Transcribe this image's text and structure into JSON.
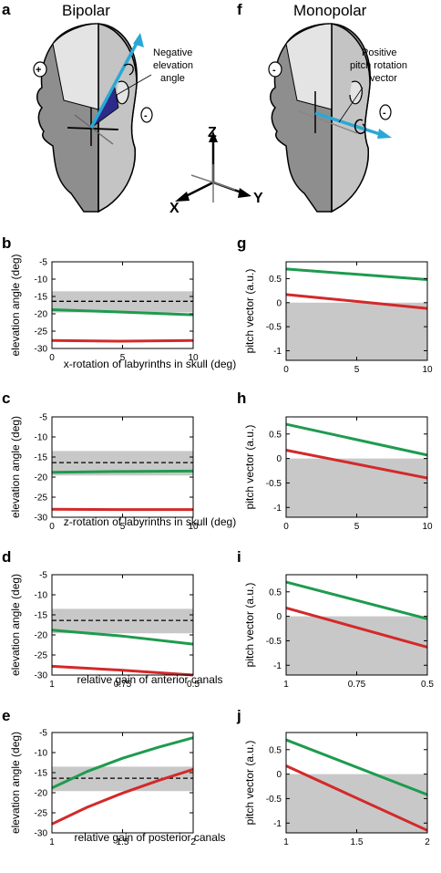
{
  "header": {
    "panel_a": {
      "letter": "a",
      "title": "Bipolar",
      "annotation_line1": "Negative",
      "annotation_line2": "elevation",
      "annotation_line3": "angle"
    },
    "panel_f": {
      "letter": "f",
      "title": "Monopolar",
      "annotation_line1": "Positive",
      "annotation_line2": "pitch rotation",
      "annotation_line3": "vector"
    },
    "axes": {
      "z": "Z",
      "x": "X",
      "y": "Y"
    }
  },
  "colors": {
    "green": "#1e9b4e",
    "red": "#d3292a",
    "shade": "#c8c8c8",
    "arrow": "#29a8d6",
    "head_light": "#e4e4e4",
    "head_mid": "#c4c4c4",
    "head_dark": "#8e8e8e"
  },
  "chart_data": [
    {
      "id": "b",
      "type": "line",
      "letter": "b",
      "ylabel": "elevation angle (deg)",
      "xlabel": "x-rotation of labyrinths in skull (deg)",
      "xlim": [
        0,
        10
      ],
      "ylim": [
        -30,
        -5
      ],
      "xticks": [
        "0",
        "5",
        "10"
      ],
      "yticks": [
        "-5",
        "-10",
        "-15",
        "-20",
        "-25",
        "-30"
      ],
      "shade": [
        -19.6,
        -13.5
      ],
      "dashed": -16.4,
      "series": [
        {
          "color": "green",
          "x": [
            0,
            5,
            10
          ],
          "y": [
            -18.8,
            -19.5,
            -20.3
          ]
        },
        {
          "color": "red",
          "x": [
            0,
            5,
            10
          ],
          "y": [
            -27.7,
            -27.9,
            -27.7
          ]
        }
      ]
    },
    {
      "id": "c",
      "type": "line",
      "letter": "c",
      "ylabel": "elevation angle (deg)",
      "xlabel": "z-rotation of labyrinths in skull (deg)",
      "xlim": [
        0,
        10
      ],
      "ylim": [
        -30,
        -5
      ],
      "xticks": [
        "0",
        "5",
        "10"
      ],
      "yticks": [
        "-5",
        "-10",
        "-15",
        "-20",
        "-25",
        "-30"
      ],
      "shade": [
        -19.6,
        -13.5
      ],
      "dashed": -16.4,
      "series": [
        {
          "color": "green",
          "x": [
            0,
            5,
            10
          ],
          "y": [
            -18.8,
            -18.6,
            -18.5
          ]
        },
        {
          "color": "red",
          "x": [
            0,
            5,
            10
          ],
          "y": [
            -28.0,
            -28.1,
            -28.1
          ]
        }
      ]
    },
    {
      "id": "d",
      "type": "line",
      "letter": "d",
      "ylabel": "elevation angle (deg)",
      "xlabel": "relative gain of anterior canals",
      "xlim": [
        1,
        0.5
      ],
      "ylim": [
        -30,
        -5
      ],
      "xticks": [
        "1",
        "0.75",
        "0.5"
      ],
      "yticks": [
        "-5",
        "-10",
        "-15",
        "-20",
        "-25",
        "-30"
      ],
      "shade": [
        -19.6,
        -13.5
      ],
      "dashed": -16.4,
      "series": [
        {
          "color": "green",
          "x": [
            1,
            0.75,
            0.5
          ],
          "y": [
            -18.8,
            -20.3,
            -22.3
          ]
        },
        {
          "color": "red",
          "x": [
            1,
            0.75,
            0.5
          ],
          "y": [
            -27.8,
            -28.8,
            -30.0
          ]
        }
      ]
    },
    {
      "id": "e",
      "type": "line",
      "letter": "e",
      "ylabel": "elevation angle (deg)",
      "xlabel": "relative gain of posterior canals",
      "xlim": [
        1,
        2
      ],
      "ylim": [
        -30,
        -5
      ],
      "xticks": [
        "1",
        "1.5",
        "2"
      ],
      "yticks": [
        "-5",
        "-10",
        "-15",
        "-20",
        "-25",
        "-30"
      ],
      "shade": [
        -19.6,
        -13.5
      ],
      "dashed": -16.4,
      "series": [
        {
          "color": "green",
          "x": [
            1,
            1.25,
            1.5,
            1.75,
            2
          ],
          "y": [
            -18.8,
            -14.7,
            -11.4,
            -8.7,
            -6.3
          ]
        },
        {
          "color": "red",
          "x": [
            1,
            1.25,
            1.5,
            1.75,
            2
          ],
          "y": [
            -27.8,
            -23.6,
            -20.1,
            -17.0,
            -14.2
          ]
        }
      ]
    },
    {
      "id": "g",
      "type": "line",
      "letter": "g",
      "ylabel": "pitch vector (a.u.)",
      "xlabel": "",
      "xlim": [
        0,
        10
      ],
      "ylim": [
        -1.2,
        0.85
      ],
      "xticks": [
        "0",
        "5",
        "10"
      ],
      "yticks": [
        "0.5",
        "0",
        "-0.5",
        "-1"
      ],
      "ytickvals": [
        0.5,
        0,
        -0.5,
        -1
      ],
      "shade": [
        -1.2,
        0
      ],
      "dashed": null,
      "series": [
        {
          "color": "green",
          "x": [
            0,
            10
          ],
          "y": [
            0.7,
            0.48
          ]
        },
        {
          "color": "red",
          "x": [
            0,
            10
          ],
          "y": [
            0.17,
            -0.12
          ]
        }
      ]
    },
    {
      "id": "h",
      "type": "line",
      "letter": "h",
      "ylabel": "pitch vector (a.u.)",
      "xlabel": "",
      "xlim": [
        0,
        10
      ],
      "ylim": [
        -1.2,
        0.85
      ],
      "xticks": [
        "0",
        "5",
        "10"
      ],
      "yticks": [
        "0.5",
        "0",
        "-0.5",
        "-1"
      ],
      "ytickvals": [
        0.5,
        0,
        -0.5,
        -1
      ],
      "shade": [
        -1.2,
        0
      ],
      "dashed": null,
      "series": [
        {
          "color": "green",
          "x": [
            0,
            10
          ],
          "y": [
            0.7,
            0.07
          ]
        },
        {
          "color": "red",
          "x": [
            0,
            10
          ],
          "y": [
            0.17,
            -0.4
          ]
        }
      ]
    },
    {
      "id": "i",
      "type": "line",
      "letter": "i",
      "ylabel": "pitch vector (a.u.)",
      "xlabel": "",
      "xlim": [
        1,
        0.5
      ],
      "ylim": [
        -1.2,
        0.85
      ],
      "xticks": [
        "1",
        "0.75",
        "0.5"
      ],
      "yticks": [
        "0.5",
        "0",
        "-0.5",
        "-1"
      ],
      "ytickvals": [
        0.5,
        0,
        -0.5,
        -1
      ],
      "shade": [
        -1.2,
        0
      ],
      "dashed": null,
      "series": [
        {
          "color": "green",
          "x": [
            1,
            0.5
          ],
          "y": [
            0.7,
            -0.05
          ]
        },
        {
          "color": "red",
          "x": [
            1,
            0.5
          ],
          "y": [
            0.17,
            -0.63
          ]
        }
      ]
    },
    {
      "id": "j",
      "type": "line",
      "letter": "j",
      "ylabel": "pitch vector (a.u.)",
      "xlabel": "",
      "xlim": [
        1,
        2
      ],
      "ylim": [
        -1.2,
        0.85
      ],
      "xticks": [
        "1",
        "1.5",
        "2"
      ],
      "yticks": [
        "0.5",
        "0",
        "-0.5",
        "-1"
      ],
      "ytickvals": [
        0.5,
        0,
        -0.5,
        -1
      ],
      "shade": [
        -1.2,
        0
      ],
      "dashed": null,
      "series": [
        {
          "color": "green",
          "x": [
            1,
            2
          ],
          "y": [
            0.7,
            -0.42
          ]
        },
        {
          "color": "red",
          "x": [
            1,
            2
          ],
          "y": [
            0.17,
            -1.15
          ]
        }
      ]
    }
  ]
}
